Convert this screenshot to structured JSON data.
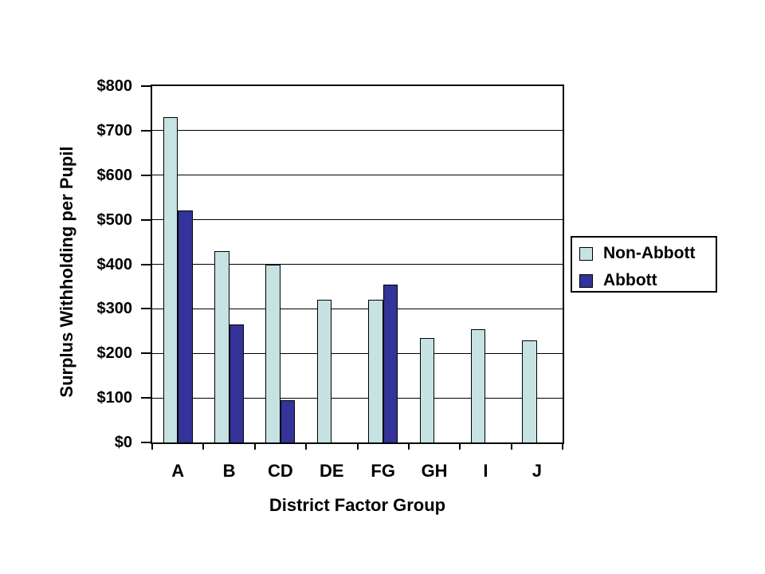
{
  "chart_data": {
    "type": "bar",
    "title": "",
    "xlabel": "District Factor Group",
    "ylabel": "Surplus Withholding per Pupil",
    "categories": [
      "A",
      "B",
      "CD",
      "DE",
      "FG",
      "GH",
      "I",
      "J"
    ],
    "series": [
      {
        "name": "Non-Abbott",
        "color": "#C6E2E2",
        "values": [
          730,
          430,
          400,
          320,
          320,
          235,
          255,
          230
        ]
      },
      {
        "name": "Abbott",
        "color": "#333399",
        "values": [
          520,
          265,
          95,
          null,
          355,
          null,
          null,
          null
        ]
      }
    ],
    "ylim": [
      0,
      800
    ],
    "ytick_step": 100,
    "ytick_labels": [
      "$0",
      "$100",
      "$200",
      "$300",
      "$400",
      "$500",
      "$600",
      "$700",
      "$800"
    ],
    "grid": true,
    "legend_position": "right",
    "background_color": "#FFFFFF",
    "axis_color": "#000000"
  }
}
